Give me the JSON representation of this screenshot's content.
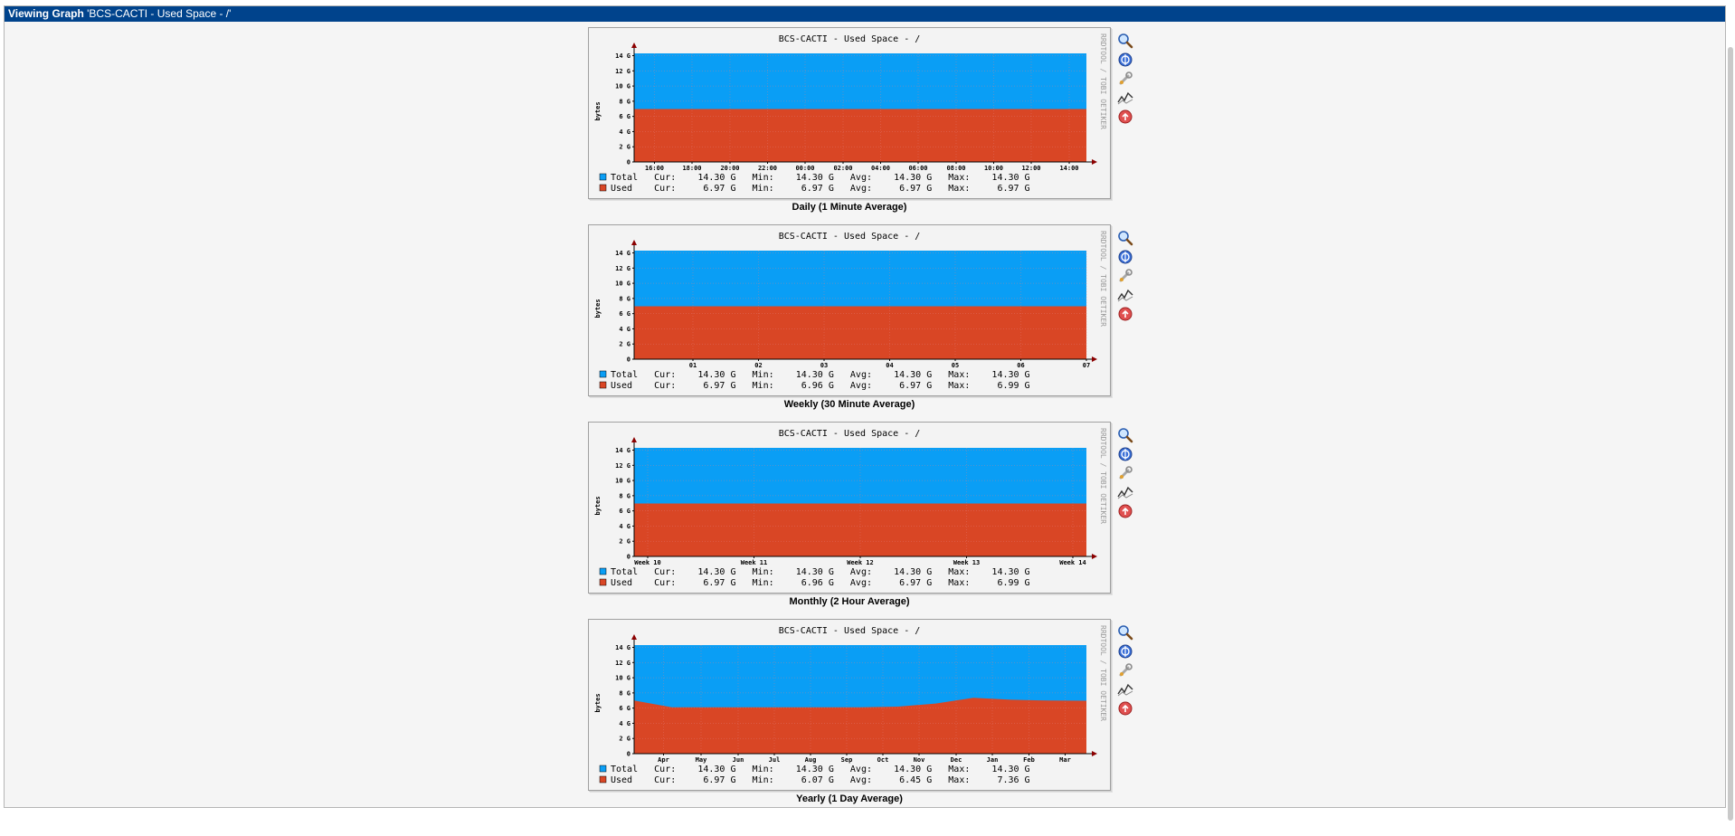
{
  "header": {
    "prefix": "Viewing Graph",
    "title": "'BCS-CACTI - Used Space - /'"
  },
  "colors": {
    "header_bg": "#00438c",
    "total": "#0a9ef5",
    "used": "#d94625",
    "axis_arrow": "#8b0000"
  },
  "icons": [
    "zoom-icon",
    "properties-icon",
    "edit-wrench-icon",
    "data-source-icon",
    "delete-icon"
  ],
  "graphs": [
    {
      "id": "daily",
      "title": "BCS-CACTI - Used Space - /",
      "ylabel": "bytes",
      "side_text": "RRDTOOL / TOBI OETIKER",
      "caption": "Daily (1 Minute Average)",
      "ticks": [
        "16:00",
        "18:00",
        "20:00",
        "22:00",
        "00:00",
        "02:00",
        "04:00",
        "06:00",
        "08:00",
        "10:00",
        "12:00",
        "14:00"
      ],
      "legend": {
        "total": "Total   Cur:    14.30 G   Min:    14.30 G   Avg:    14.30 G   Max:    14.30 G",
        "used": "Used    Cur:     6.97 G   Min:     6.97 G   Avg:     6.97 G   Max:     6.97 G"
      }
    },
    {
      "id": "weekly",
      "title": "BCS-CACTI - Used Space - /",
      "ylabel": "bytes",
      "side_text": "RRDTOOL / TOBI OETIKER",
      "caption": "Weekly (30 Minute Average)",
      "ticks": [
        "01",
        "02",
        "03",
        "04",
        "05",
        "06",
        "07"
      ],
      "legend": {
        "total": "Total   Cur:    14.30 G   Min:    14.30 G   Avg:    14.30 G   Max:    14.30 G",
        "used": "Used    Cur:     6.97 G   Min:     6.96 G   Avg:     6.97 G   Max:     6.99 G"
      }
    },
    {
      "id": "monthly",
      "title": "BCS-CACTI - Used Space - /",
      "ylabel": "bytes",
      "side_text": "RRDTOOL / TOBI OETIKER",
      "caption": "Monthly (2 Hour Average)",
      "ticks": [
        "Week 10",
        "Week 11",
        "Week 12",
        "Week 13",
        "Week 14"
      ],
      "legend": {
        "total": "Total   Cur:    14.30 G   Min:    14.30 G   Avg:    14.30 G   Max:    14.30 G",
        "used": "Used    Cur:     6.97 G   Min:     6.96 G   Avg:     6.97 G   Max:     6.99 G"
      }
    },
    {
      "id": "yearly",
      "title": "BCS-CACTI - Used Space - /",
      "ylabel": "bytes",
      "side_text": "RRDTOOL / TOBI OETIKER",
      "caption": "Yearly (1 Day Average)",
      "ticks": [
        "Apr",
        "May",
        "Jun",
        "Jul",
        "Aug",
        "Sep",
        "Oct",
        "Nov",
        "Dec",
        "Jan",
        "Feb",
        "Mar"
      ],
      "legend": {
        "total": "Total   Cur:    14.30 G   Min:    14.30 G   Avg:    14.30 G   Max:    14.30 G",
        "used": "Used    Cur:     6.97 G   Min:     6.07 G   Avg:     6.45 G   Max:     7.36 G"
      }
    }
  ],
  "chart_data": [
    {
      "type": "area",
      "title": "BCS-CACTI - Used Space - /",
      "ylabel": "bytes",
      "ylim": [
        0,
        14
      ],
      "yticks": [
        "0",
        "2 G",
        "4 G",
        "6 G",
        "8 G",
        "10 G",
        "12 G",
        "14 G"
      ],
      "x": [
        "16:00",
        "18:00",
        "20:00",
        "22:00",
        "00:00",
        "02:00",
        "04:00",
        "06:00",
        "08:00",
        "10:00",
        "12:00",
        "14:00"
      ],
      "series": [
        {
          "name": "Total",
          "values": [
            14.3,
            14.3,
            14.3,
            14.3,
            14.3,
            14.3,
            14.3,
            14.3,
            14.3,
            14.3,
            14.3,
            14.3
          ]
        },
        {
          "name": "Used",
          "values": [
            6.97,
            6.97,
            6.97,
            6.97,
            6.97,
            6.97,
            6.97,
            6.97,
            6.97,
            6.97,
            6.97,
            6.97
          ]
        }
      ]
    },
    {
      "type": "area",
      "title": "BCS-CACTI - Used Space - /",
      "ylabel": "bytes",
      "ylim": [
        0,
        14
      ],
      "yticks": [
        "0",
        "2 G",
        "4 G",
        "6 G",
        "8 G",
        "10 G",
        "12 G",
        "14 G"
      ],
      "x": [
        "01",
        "02",
        "03",
        "04",
        "05",
        "06",
        "07"
      ],
      "series": [
        {
          "name": "Total",
          "values": [
            14.3,
            14.3,
            14.3,
            14.3,
            14.3,
            14.3,
            14.3
          ]
        },
        {
          "name": "Used",
          "values": [
            6.97,
            6.97,
            6.97,
            6.97,
            6.97,
            6.97,
            6.97
          ]
        }
      ]
    },
    {
      "type": "area",
      "title": "BCS-CACTI - Used Space - /",
      "ylabel": "bytes",
      "ylim": [
        0,
        14
      ],
      "yticks": [
        "0",
        "2 G",
        "4 G",
        "6 G",
        "8 G",
        "10 G",
        "12 G",
        "14 G"
      ],
      "x": [
        "Week 10",
        "Week 11",
        "Week 12",
        "Week 13",
        "Week 14"
      ],
      "series": [
        {
          "name": "Total",
          "values": [
            14.3,
            14.3,
            14.3,
            14.3,
            14.3
          ]
        },
        {
          "name": "Used",
          "values": [
            6.97,
            6.97,
            6.97,
            6.97,
            6.97
          ]
        }
      ]
    },
    {
      "type": "area",
      "title": "BCS-CACTI - Used Space - /",
      "ylabel": "bytes",
      "ylim": [
        0,
        14
      ],
      "yticks": [
        "0",
        "2 G",
        "4 G",
        "6 G",
        "8 G",
        "10 G",
        "12 G",
        "14 G"
      ],
      "x": [
        "Mar",
        "Apr",
        "May",
        "Jun",
        "Jul",
        "Aug",
        "Sep",
        "Oct",
        "Nov",
        "Dec",
        "Jan",
        "Feb",
        "Mar"
      ],
      "series": [
        {
          "name": "Total",
          "values": [
            14.3,
            14.3,
            14.3,
            14.3,
            14.3,
            14.3,
            14.3,
            14.3,
            14.3,
            14.3,
            14.3,
            14.3,
            14.3
          ]
        },
        {
          "name": "Used",
          "values": [
            7.0,
            6.1,
            6.1,
            6.1,
            6.1,
            6.1,
            6.1,
            6.2,
            6.6,
            7.36,
            7.1,
            7.0,
            6.97
          ]
        }
      ]
    }
  ]
}
